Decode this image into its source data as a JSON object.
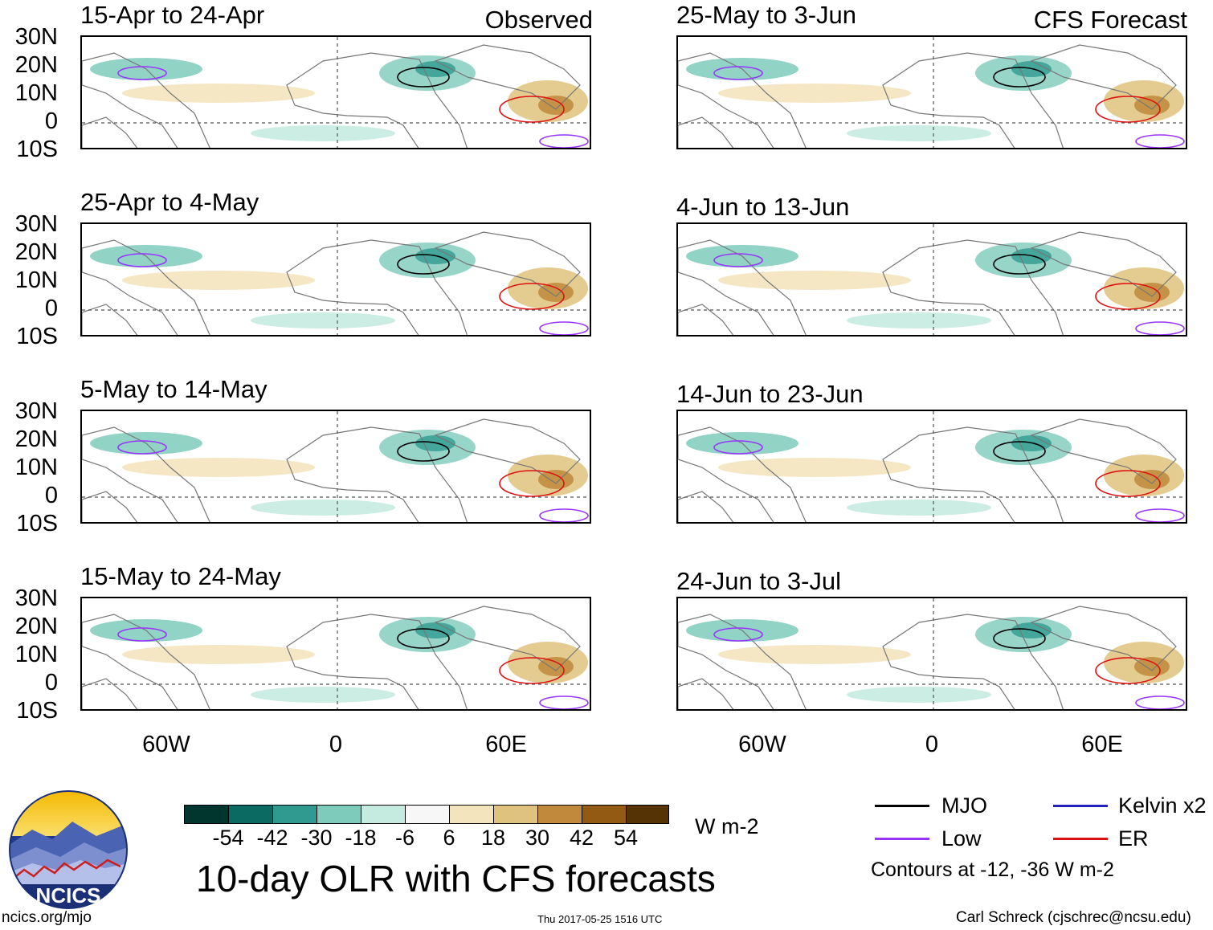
{
  "observed_label": "Observed",
  "forecast_label": "CFS Forecast",
  "panels_left": [
    {
      "title": "15-Apr to 24-Apr"
    },
    {
      "title": "25-Apr to 4-May"
    },
    {
      "title": "5-May to 14-May"
    },
    {
      "title": "15-May to 24-May"
    }
  ],
  "panels_right": [
    {
      "title": "25-May to 3-Jun"
    },
    {
      "title": "4-Jun to 13-Jun"
    },
    {
      "title": "14-Jun to 23-Jun"
    },
    {
      "title": "24-Jun to 3-Jul"
    }
  ],
  "lat_labels": [
    "30N",
    "20N",
    "10N",
    "0",
    "10S"
  ],
  "lon_labels": [
    "60W",
    "0",
    "60E"
  ],
  "colorbar": {
    "colors": [
      "#01362e",
      "#0b6b63",
      "#319a90",
      "#7ecbbb",
      "#c5ebe0",
      "#f7f7f7",
      "#f4e4be",
      "#dfc27d",
      "#c0893b",
      "#935a14",
      "#553305"
    ],
    "labels": [
      "-54",
      "-42",
      "-30",
      "-18",
      "-6",
      "6",
      "18",
      "30",
      "42",
      "54"
    ],
    "units": "W m-2"
  },
  "legend": {
    "mjo": "MJO",
    "low": "Low",
    "kelvin": "Kelvin x2",
    "er": "ER",
    "mjo_color": "#000000",
    "low_color": "#9933ff",
    "kelvin_color": "#2222bb",
    "er_color": "#dd1111",
    "note": "Contours at -12, -36 W m-2"
  },
  "main_title": "10-day OLR with CFS forecasts",
  "logo_text": "NCICS",
  "footer": {
    "url": "ncics.org/mjo",
    "timestamp": "Thu 2017-05-25 1516 UTC",
    "credit": "Carl Schreck (cjschrec@ncsu.edu)"
  }
}
